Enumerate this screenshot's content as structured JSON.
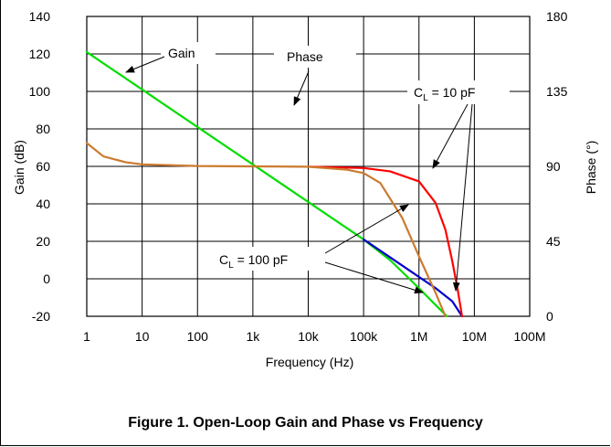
{
  "caption": "Figure 1. Open-Loop Gain and Phase vs Frequency",
  "chart_data": {
    "type": "line",
    "xlabel": "Frequency (Hz)",
    "ylabel": "Gain (dB)",
    "y2label": "Phase (°)",
    "xscale": "log",
    "xlim": [
      1,
      100000000
    ],
    "ylim": [
      -20,
      140
    ],
    "y2lim": [
      0,
      180
    ],
    "grid": true,
    "x_ticks": [
      {
        "value": 1,
        "label": "1"
      },
      {
        "value": 10,
        "label": "10"
      },
      {
        "value": 100,
        "label": "100"
      },
      {
        "value": 1000,
        "label": "1k"
      },
      {
        "value": 10000,
        "label": "10k"
      },
      {
        "value": 100000,
        "label": "100k"
      },
      {
        "value": 1000000,
        "label": "1M"
      },
      {
        "value": 10000000,
        "label": "10M"
      },
      {
        "value": 100000000,
        "label": "100M"
      }
    ],
    "y_ticks": [
      {
        "value": 140,
        "label": "140"
      },
      {
        "value": 120,
        "label": "120"
      },
      {
        "value": 100,
        "label": "100"
      },
      {
        "value": 80,
        "label": "80"
      },
      {
        "value": 60,
        "label": "60"
      },
      {
        "value": 40,
        "label": "40"
      },
      {
        "value": 20,
        "label": "20"
      },
      {
        "value": 0,
        "label": "0"
      },
      {
        "value": -20,
        "label": "-20"
      }
    ],
    "y2_ticks": [
      {
        "value": 180,
        "label": "180"
      },
      {
        "value": 135,
        "label": "135"
      },
      {
        "value": 90,
        "label": "90"
      },
      {
        "value": 45,
        "label": "45"
      },
      {
        "value": 0,
        "label": "0"
      }
    ],
    "series": [
      {
        "color": "#00dd00",
        "axis": "left",
        "label": "green gain curve",
        "points": [
          [
            1,
            121
          ],
          [
            10,
            101
          ],
          [
            100,
            81
          ],
          [
            1000,
            61
          ],
          [
            10000,
            41
          ],
          [
            100000,
            21
          ],
          [
            300000,
            10
          ],
          [
            1000000,
            -5
          ],
          [
            2000000,
            -14
          ],
          [
            3200000,
            -20
          ]
        ]
      },
      {
        "color": "#0000cc",
        "axis": "left",
        "label": "blue gain curve",
        "points": [
          [
            100000,
            21
          ],
          [
            300000,
            11.5
          ],
          [
            1000000,
            1
          ],
          [
            2000000,
            -5
          ],
          [
            4000000,
            -12
          ],
          [
            6000000,
            -20
          ]
        ]
      },
      {
        "color": "#ff0000",
        "axis": "right",
        "label": "red phase curve",
        "points": [
          [
            10000,
            89.8
          ],
          [
            100000,
            89
          ],
          [
            300000,
            87
          ],
          [
            1000000,
            81
          ],
          [
            2000000,
            68
          ],
          [
            3000000,
            52
          ],
          [
            4000000,
            33
          ],
          [
            5000000,
            16
          ],
          [
            6000000,
            0
          ]
        ]
      },
      {
        "color": "#cc7a2e",
        "axis": "right",
        "label": "orange phase curve",
        "points": [
          [
            1,
            104
          ],
          [
            2,
            96
          ],
          [
            5,
            92.5
          ],
          [
            10,
            91.2
          ],
          [
            100,
            90.2
          ],
          [
            1000,
            90
          ],
          [
            10000,
            89.8
          ],
          [
            50000,
            88
          ],
          [
            100000,
            86
          ],
          [
            200000,
            80
          ],
          [
            500000,
            59
          ],
          [
            1000000,
            36
          ],
          [
            2000000,
            14
          ],
          [
            3000000,
            0
          ]
        ]
      }
    ],
    "annotations": [
      {
        "text": "Gain",
        "sub": ""
      },
      {
        "text": "Phase",
        "sub": ""
      },
      {
        "text": "C",
        "sub": "L",
        "suffix": " = 10 pF"
      },
      {
        "text": "C",
        "sub": "L",
        "suffix": " = 100 pF"
      }
    ]
  }
}
